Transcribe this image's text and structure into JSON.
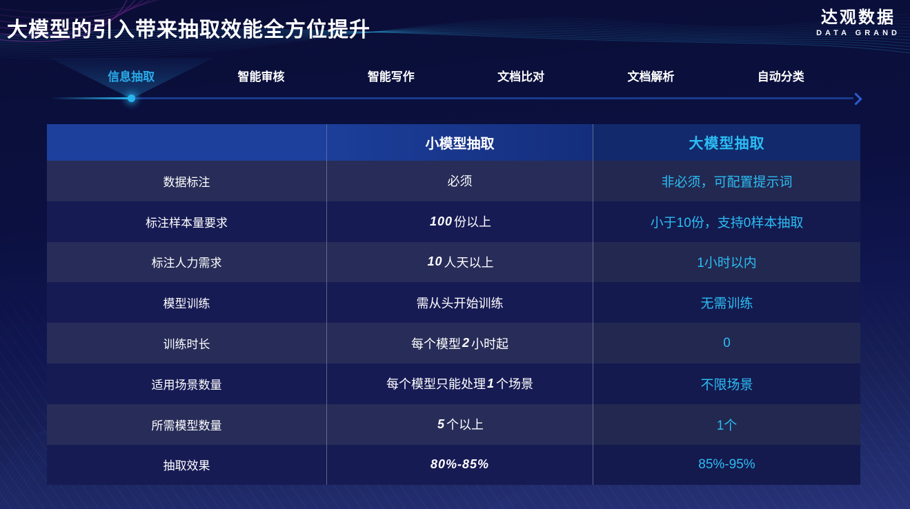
{
  "page": {
    "title": "大模型的引入带来抽取效能全方位提升"
  },
  "logo": {
    "name": "达观数据",
    "tagline": "DATA GRAND"
  },
  "tabs": {
    "items": [
      {
        "label": "信息抽取",
        "active": true
      },
      {
        "label": "智能审核",
        "active": false
      },
      {
        "label": "智能写作",
        "active": false
      },
      {
        "label": "文档比对",
        "active": false
      },
      {
        "label": "文档解析",
        "active": false
      },
      {
        "label": "自动分类",
        "active": false
      }
    ]
  },
  "table": {
    "columns": [
      "",
      "小模型抽取",
      "大模型抽取"
    ],
    "rows": [
      {
        "label": "数据标注",
        "small": "必须",
        "large": "非必须，可配置提示词"
      },
      {
        "label": "标注样本量要求",
        "small": "100份以上",
        "large": "小于10份，支持0样本抽取"
      },
      {
        "label": "标注人力需求",
        "small": "10人天以上",
        "large": "1小时以内"
      },
      {
        "label": "模型训练",
        "small": "需从头开始训练",
        "large": "无需训练"
      },
      {
        "label": "训练时长",
        "small": "每个模型2小时起",
        "large": "0"
      },
      {
        "label": "适用场景数量",
        "small": "每个模型只能处理1个场景",
        "large": "不限场景"
      },
      {
        "label": "所需模型数量",
        "small": "5个以上",
        "large": "1个"
      },
      {
        "label": "抽取效果",
        "small": "80%-85%",
        "large": "85%-95%"
      }
    ]
  },
  "colors": {
    "accent_cyan": "#2cbdf5",
    "active_tab": "#2aaae8",
    "header_blue": "#1d409c",
    "background_navy": "#0b1040"
  }
}
